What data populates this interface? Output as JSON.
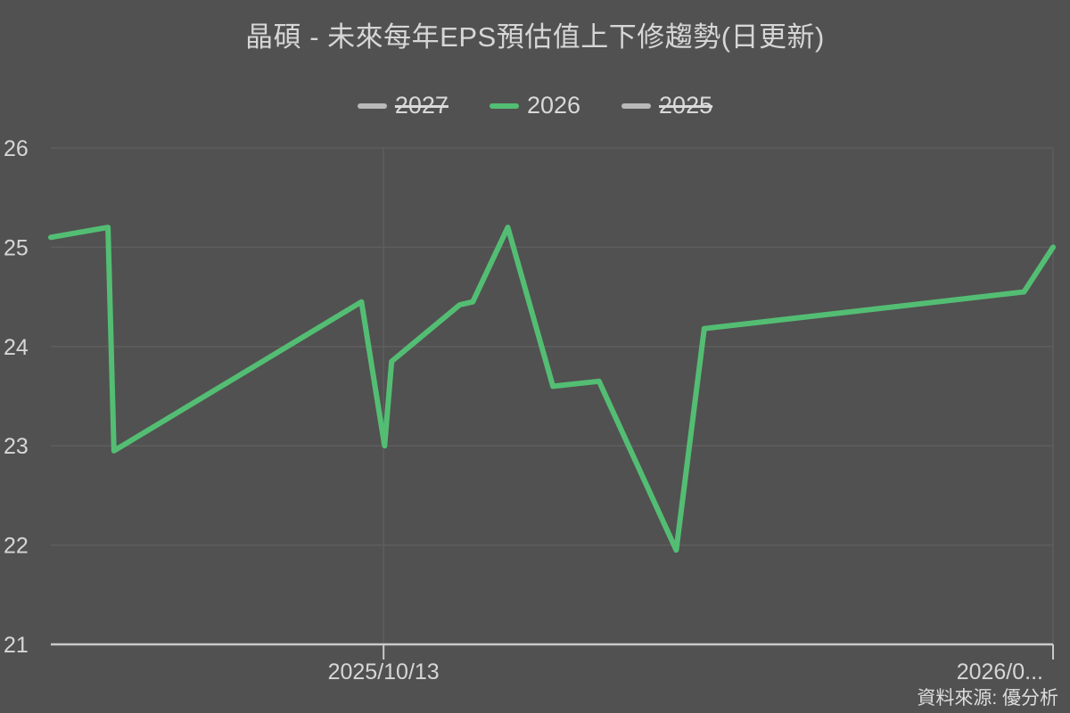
{
  "chart_data": {
    "type": "line",
    "title": "晶碩 - 未來每年EPS預估值上下修趨勢(日更新)",
    "source": "資料來源: 優分析",
    "colors": {
      "background": "#515151",
      "text": "#d6d6d6",
      "grid": "#5e5e5e",
      "axis": "#c9c9c9",
      "active_series": "#53be73",
      "inactive_series": "#b9b9b9"
    },
    "y_axis": {
      "min": 21,
      "max": 26,
      "ticks": [
        26,
        25,
        24,
        23,
        22,
        21
      ]
    },
    "x_axis": {
      "ticks": [
        {
          "label": "2025/10/13",
          "frac": 0.332
        },
        {
          "label": "2026/0...",
          "frac": 1.0
        }
      ]
    },
    "legend": [
      {
        "label": "2027",
        "active": false
      },
      {
        "label": "2026",
        "active": true
      },
      {
        "label": "2025",
        "active": false
      }
    ],
    "series": [
      {
        "name": "2026",
        "points": [
          [
            0.0,
            25.1
          ],
          [
            0.057,
            25.2
          ],
          [
            0.063,
            22.95
          ],
          [
            0.31,
            24.45
          ],
          [
            0.333,
            23.0
          ],
          [
            0.34,
            23.85
          ],
          [
            0.408,
            24.42
          ],
          [
            0.421,
            24.45
          ],
          [
            0.456,
            25.2
          ],
          [
            0.501,
            23.6
          ],
          [
            0.547,
            23.65
          ],
          [
            0.624,
            21.95
          ],
          [
            0.652,
            24.18
          ],
          [
            0.971,
            24.55
          ],
          [
            1.0,
            25.0
          ]
        ]
      }
    ]
  }
}
